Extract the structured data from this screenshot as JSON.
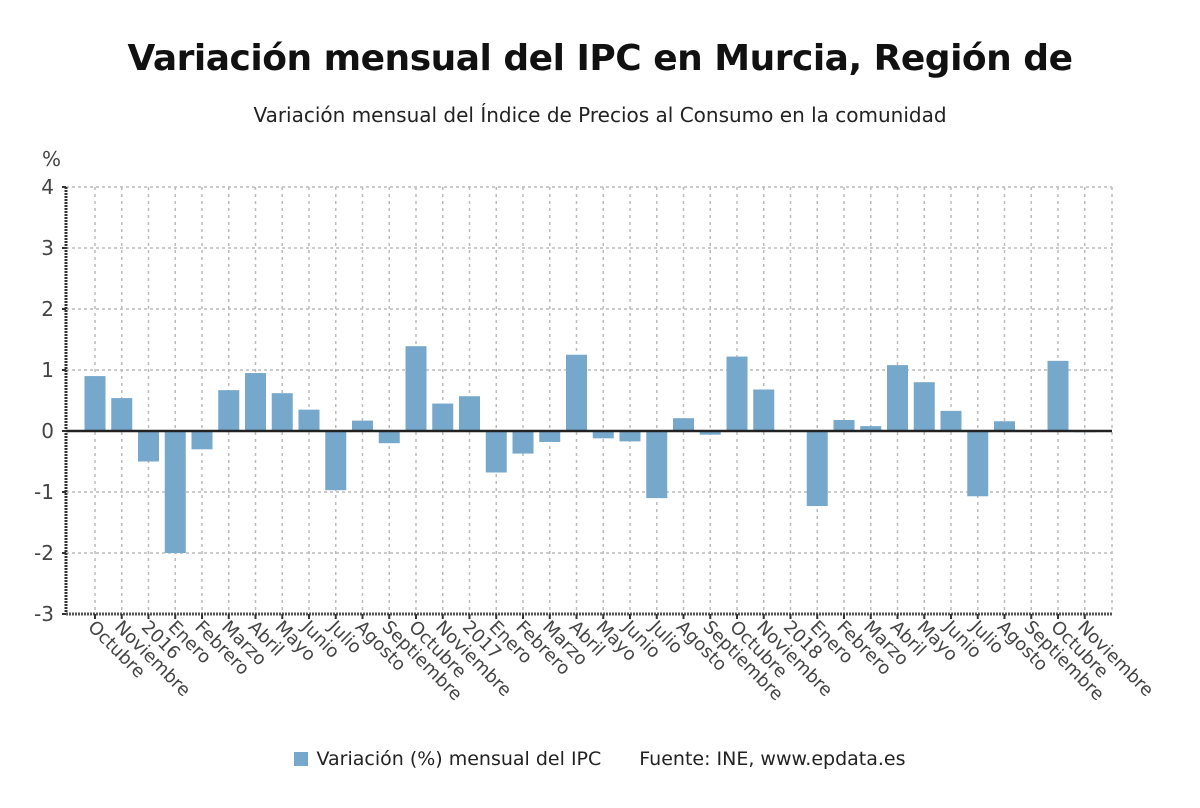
{
  "header": {
    "title": "Variación mensual del IPC en Murcia, Región de",
    "subtitle": "Variación mensual del Índice de Precios al Consumo en la comunidad"
  },
  "legend": {
    "series_label": "Variación (%) mensual del IPC",
    "source": "Fuente: INE, www.epdata.es",
    "color": "#76a8cc"
  },
  "chart_data": {
    "type": "bar",
    "title": "Variación mensual del IPC en Murcia, Región de",
    "subtitle": "Variación mensual del Índice de Precios al Consumo en la comunidad",
    "xlabel": "",
    "ylabel": "%",
    "ylim": [
      -3,
      4
    ],
    "yticks": [
      "4",
      "3",
      "2",
      "1",
      "0",
      "-1",
      "-2",
      "-3"
    ],
    "grid": true,
    "legend_position": "bottom",
    "categories": [
      "Octubre",
      "Noviembre",
      "2016",
      "Enero",
      "Febrero",
      "Marzo",
      "Abril",
      "Mayo",
      "Junio",
      "Julio",
      "Agosto",
      "Septiembre",
      "Octubre",
      "Noviembre",
      "2017",
      "Enero",
      "Febrero",
      "Marzo",
      "Abril",
      "Mayo",
      "Junio",
      "Julio",
      "Agosto",
      "Septiembre",
      "Octubre",
      "Noviembre",
      "2018",
      "Enero",
      "Febrero",
      "Marzo",
      "Abril",
      "Mayo",
      "Junio",
      "Julio",
      "Agosto",
      "Septiembre",
      "Octubre",
      "Noviembre"
    ],
    "series": [
      {
        "name": "Variación (%) mensual del IPC",
        "color": "#76a8cc",
        "values": [
          0.9,
          0.54,
          -0.5,
          -2.0,
          -0.3,
          0.67,
          0.95,
          0.62,
          0.35,
          -0.97,
          0.17,
          -0.2,
          1.39,
          0.45,
          0.57,
          -0.68,
          -0.37,
          -0.18,
          1.25,
          -0.12,
          -0.17,
          -1.1,
          0.21,
          -0.06,
          1.22,
          0.68,
          0.01,
          -1.23,
          0.18,
          0.08,
          1.08,
          0.8,
          0.33,
          -1.07,
          0.16,
          0.0,
          1.15,
          -0.02
        ]
      }
    ]
  }
}
